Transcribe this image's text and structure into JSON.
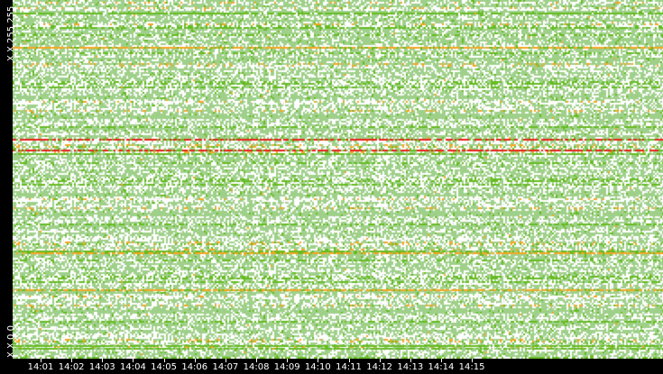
{
  "chart_data": {
    "type": "heatmap",
    "y_labels": [
      "X.X.255.255",
      "X.X.0.0"
    ],
    "x_tick_labels": [
      "14:01",
      "14:02",
      "14:03",
      "14:04",
      "14:05",
      "14:06",
      "14:07",
      "14:08",
      "14:09",
      "14:10",
      "14:11",
      "14:12",
      "14:13",
      "14:14",
      "14:15"
    ],
    "colors": {
      "low": "#9fd08a",
      "mid": "#66bb22",
      "high": "#f5a623",
      "peak": "#e8231b",
      "empty": "#ffffff",
      "background": "#000000"
    },
    "grid": false,
    "legend": "none"
  }
}
